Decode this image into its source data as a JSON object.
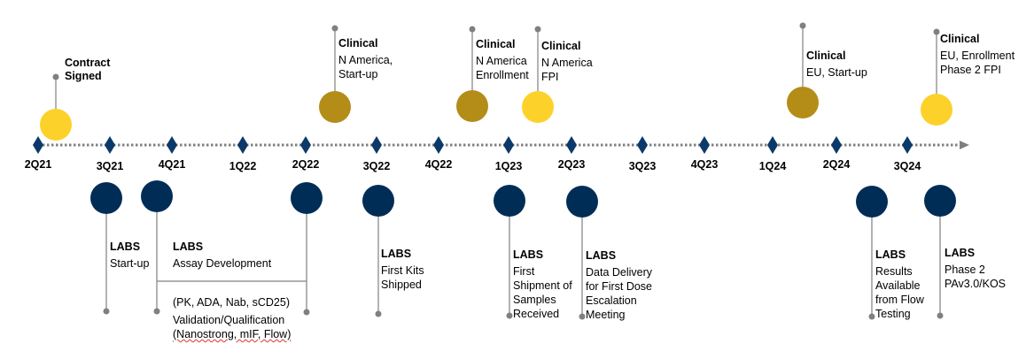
{
  "colors": {
    "navy": "#002d56",
    "gold": "#b48c18",
    "yellow": "#fcd22a",
    "line": "#808080"
  },
  "quarters": [
    "2Q21",
    "3Q21",
    "4Q21",
    "1Q22",
    "2Q22",
    "3Q22",
    "4Q22",
    "1Q23",
    "2Q23",
    "3Q23",
    "4Q23",
    "1Q24",
    "2Q24",
    "3Q24"
  ],
  "top_events": [
    {
      "title": "Contract Signed",
      "lines": [],
      "color": "yellow"
    },
    {
      "title": "Clinical",
      "lines": [
        "N America,",
        "Start-up"
      ],
      "color": "gold"
    },
    {
      "title": "Clinical",
      "lines": [
        "N America",
        "Enrollment"
      ],
      "color": "gold"
    },
    {
      "title": "Clinical",
      "lines": [
        "N America",
        "FPI"
      ],
      "color": "yellow"
    },
    {
      "title": "Clinical",
      "lines": [
        "EU, Start-up"
      ],
      "color": "gold"
    },
    {
      "title": "Clinical",
      "lines": [
        "EU, Enrollment",
        "Phase 2 FPI"
      ],
      "color": "yellow"
    }
  ],
  "bottom_events": [
    {
      "title": "LABS",
      "lines": [
        "Start-up"
      ]
    },
    {
      "title": "LABS",
      "lines": [
        "Assay Development"
      ],
      "sub": [
        "(PK, ADA, Nab, sCD25)",
        "Validation/Qualification",
        "(Nanostrong, mIF, Flow)"
      ]
    },
    {
      "title": "LABS",
      "lines": [
        "First Kits",
        "Shipped"
      ]
    },
    {
      "title": "LABS",
      "lines": [
        "First",
        "Shipment of",
        "Samples",
        "Received"
      ]
    },
    {
      "title": "LABS",
      "lines": [
        "Data Delivery",
        "for First Dose",
        "Escalation",
        "Meeting"
      ]
    },
    {
      "title": "LABS",
      "lines": [
        "Results",
        "Available",
        "from Flow",
        "Testing"
      ]
    },
    {
      "title": "LABS",
      "lines": [
        "Phase 2",
        " PAv3.0/KOS"
      ]
    }
  ]
}
